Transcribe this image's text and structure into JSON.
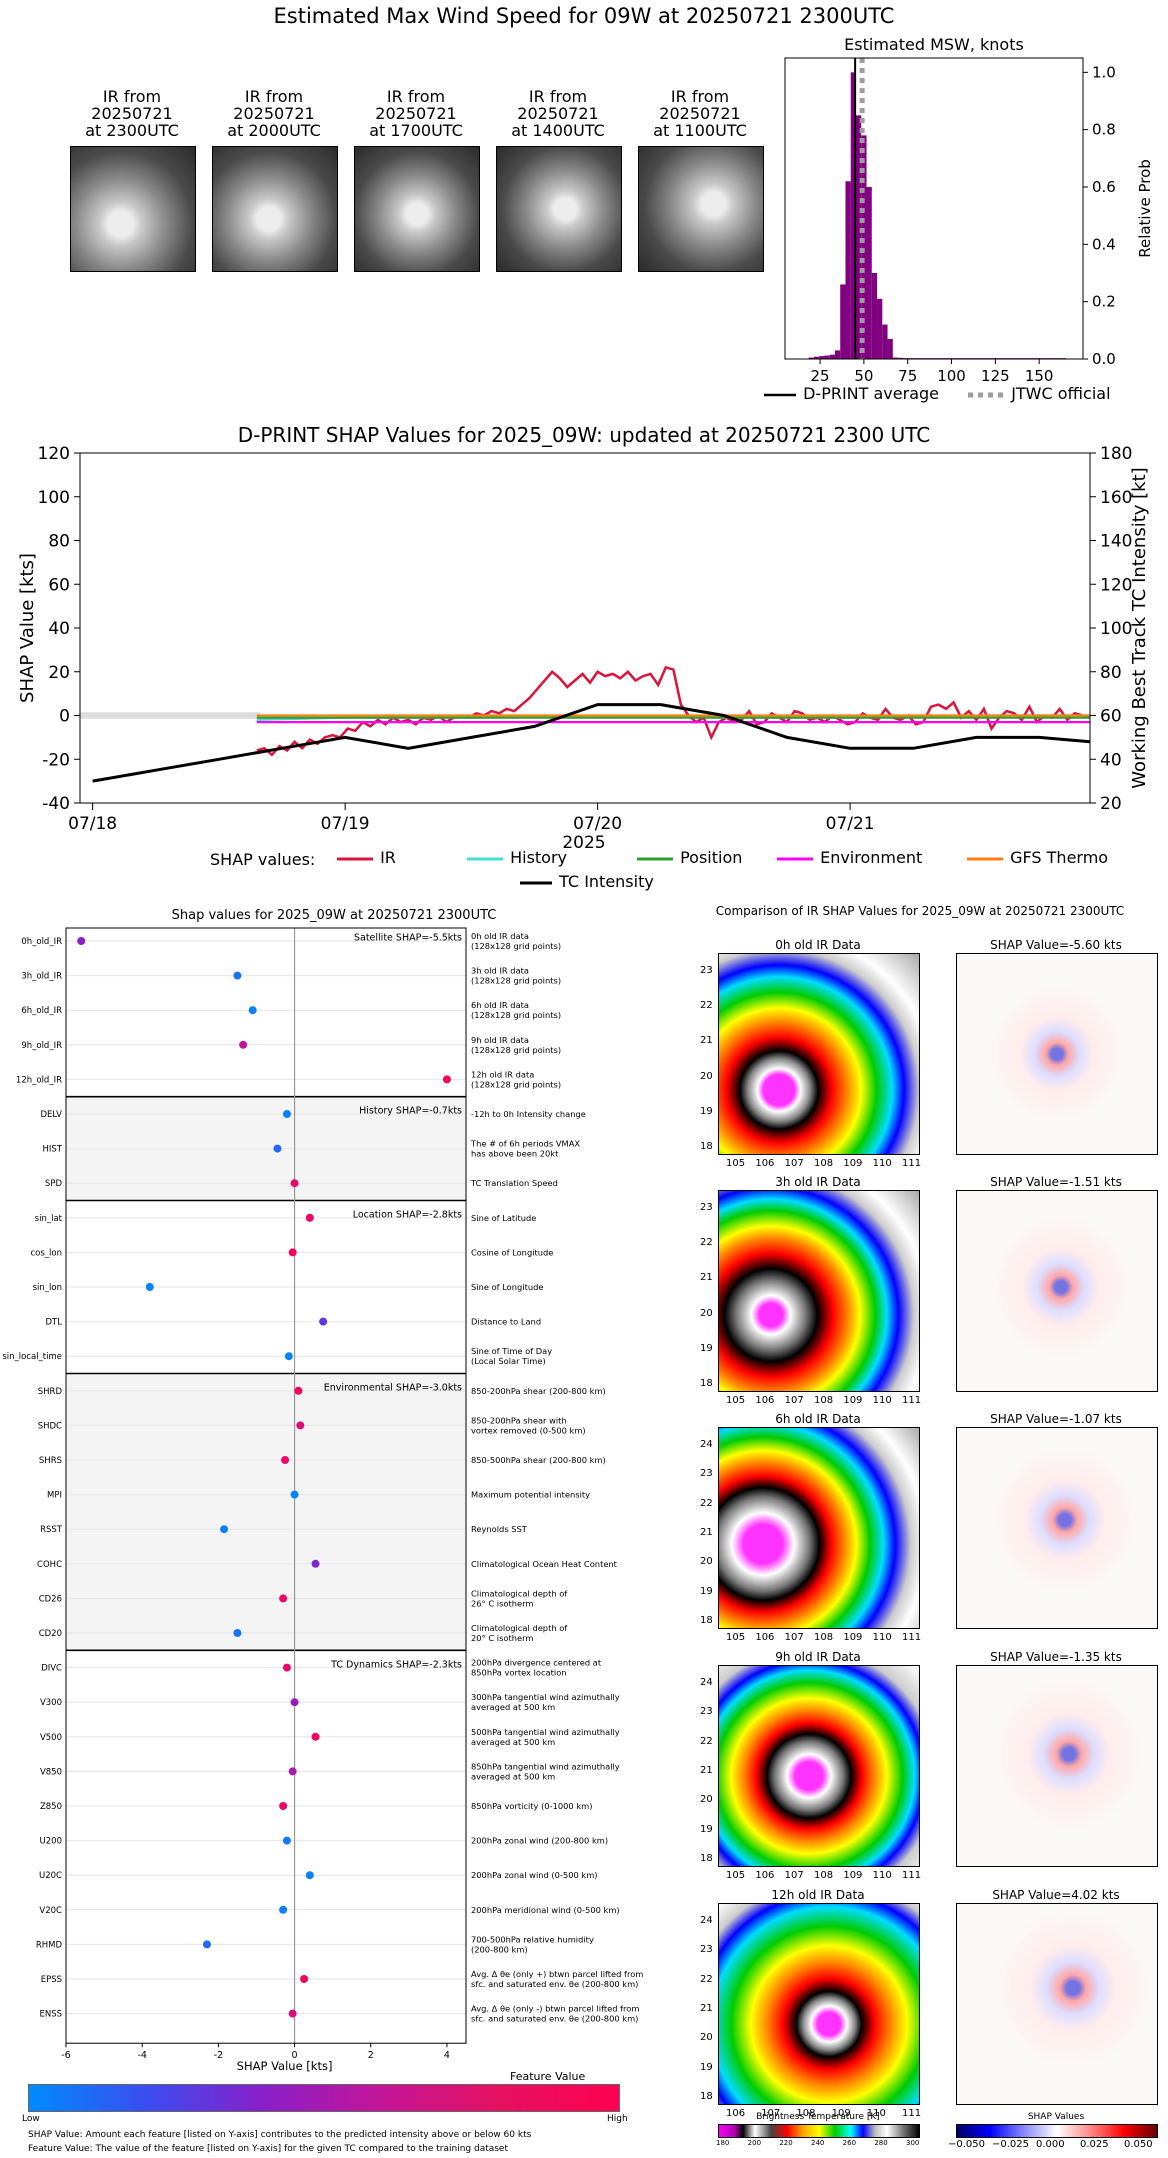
{
  "page": {
    "title": "Estimated Max Wind Speed for 09W at 20250721 2300UTC"
  },
  "ir_thumbnails": [
    {
      "label": "IR from\n20250721\nat 2300UTC"
    },
    {
      "label": "IR from\n20250721\nat 2000UTC"
    },
    {
      "label": "IR from\n20250721\nat 1700UTC"
    },
    {
      "label": "IR from\n20250721\nat 1400UTC"
    },
    {
      "label": "IR from\n20250721\nat 1100UTC"
    }
  ],
  "msw_legend": {
    "dprint": "D-PRINT average",
    "jtwc": "JTWC official"
  },
  "shap_legend": {
    "title": "SHAP values:",
    "items": [
      {
        "name": "IR",
        "color": "#dc143c"
      },
      {
        "name": "History",
        "color": "#40e0d0"
      },
      {
        "name": "Position",
        "color": "#2ca02c"
      },
      {
        "name": "Environment",
        "color": "#ff00ff"
      },
      {
        "name": "GFS Thermo",
        "color": "#ff7f0e"
      }
    ],
    "tc": "TC Intensity"
  },
  "ir_comparison": {
    "title": "Comparison of IR SHAP Values for 2025_09W at 20250721 2300UTC",
    "panels": [
      {
        "ir_title": "0h old IR Data",
        "shap_title": "SHAP Value=-5.60 kts",
        "y_ticks": [
          "23",
          "22",
          "21",
          "20",
          "19",
          "18"
        ],
        "x_ticks": [
          "105",
          "106",
          "107",
          "108",
          "109",
          "110",
          "111"
        ]
      },
      {
        "ir_title": "3h old IR Data",
        "shap_title": "SHAP Value=-1.51 kts",
        "y_ticks": [
          "23",
          "22",
          "21",
          "20",
          "19",
          "18"
        ],
        "x_ticks": [
          "105",
          "106",
          "107",
          "108",
          "109",
          "110",
          "111"
        ]
      },
      {
        "ir_title": "6h old IR Data",
        "shap_title": "SHAP Value=-1.07 kts",
        "y_ticks": [
          "24",
          "23",
          "22",
          "21",
          "20",
          "19",
          "18"
        ],
        "x_ticks": [
          "105",
          "106",
          "107",
          "108",
          "109",
          "110",
          "111"
        ]
      },
      {
        "ir_title": "9h old IR Data",
        "shap_title": "SHAP Value=-1.35 kts",
        "y_ticks": [
          "24",
          "23",
          "22",
          "21",
          "20",
          "19",
          "18"
        ],
        "x_ticks": [
          "105",
          "106",
          "107",
          "108",
          "109",
          "110",
          "111"
        ]
      },
      {
        "ir_title": "12h old IR Data",
        "shap_title": "SHAP Value=4.02 kts",
        "y_ticks": [
          "24",
          "23",
          "22",
          "21",
          "20",
          "19",
          "18"
        ],
        "x_ticks": [
          "106",
          "107",
          "108",
          "109",
          "110",
          "111"
        ]
      }
    ],
    "bt_title": "Brightness Temperature [K]",
    "bt_ticks": [
      "180",
      "200",
      "220",
      "240",
      "260",
      "280",
      "300"
    ],
    "sv_title": "SHAP Values",
    "sv_ticks": [
      "−0.050",
      "−0.025",
      "0.000",
      "0.025",
      "0.050"
    ]
  },
  "feature_colorbar": {
    "title": "Feature Value",
    "low": "Low",
    "high": "High"
  },
  "footer": {
    "line1": "SHAP Value: Amount each feature [listed on Y-axis] contributes to the predicted intensity above or below 60 kts",
    "line2": "Feature Value: The value of the feature [listed on Y-axis] for the given TC compared to the training dataset"
  },
  "chart_data": [
    {
      "type": "bar",
      "title": "Estimated MSW, knots",
      "ylabel": "Relative Prob",
      "xlim": [
        5,
        175
      ],
      "ylim": [
        0,
        1.05
      ],
      "x_ticks": [
        25,
        50,
        75,
        100,
        125,
        150
      ],
      "y_ticks": [
        0.0,
        0.2,
        0.4,
        0.6,
        0.8,
        1.0
      ],
      "bin_width": 3,
      "bins": [
        17,
        20,
        23,
        26,
        29,
        32,
        35,
        38,
        41,
        44,
        47,
        50,
        53,
        56,
        59,
        62,
        65,
        68,
        71,
        74,
        77,
        80,
        83,
        86,
        89,
        92,
        95,
        98,
        101,
        104,
        107,
        110,
        113,
        116,
        119,
        122,
        125,
        128,
        131,
        134,
        137,
        140,
        143,
        146,
        149,
        152,
        155,
        158,
        161,
        164,
        167
      ],
      "values": [
        0.0,
        0.005,
        0.008,
        0.01,
        0.012,
        0.015,
        0.03,
        0.26,
        0.62,
        1.0,
        0.85,
        0.78,
        0.6,
        0.3,
        0.21,
        0.12,
        0.07,
        0.005,
        0.004,
        0.003,
        0.003,
        0.003,
        0.003,
        0.003,
        0.003,
        0.003,
        0.003,
        0.003,
        0.003,
        0.003,
        0.003,
        0.003,
        0.003,
        0.003,
        0.003,
        0.003,
        0.003,
        0.003,
        0.003,
        0.003,
        0.003,
        0.003,
        0.003,
        0.003,
        0.003,
        0.003,
        0.003,
        0.003,
        0.003,
        0.003,
        0.0
      ],
      "dprint_average": 45,
      "jtwc_official": 49,
      "colors": {
        "bars": "#800080",
        "average": "#000000",
        "jtwc": "#9e9e9e"
      }
    },
    {
      "type": "line",
      "title": "D-PRINT SHAP Values for 2025_09W: updated at 20250721 2300 UTC",
      "xlabel": "2025",
      "ylabel": "SHAP Value [kts]",
      "y2label": "Working Best Track TC Intensity [kt]",
      "ylim": [
        -40,
        120
      ],
      "y2lim": [
        20,
        180
      ],
      "y_ticks": [
        -40,
        -20,
        0,
        20,
        40,
        60,
        80,
        100,
        120
      ],
      "y2_ticks": [
        20,
        40,
        60,
        80,
        100,
        120,
        140,
        160,
        180
      ],
      "x_ticks": [
        "07/18",
        "07/19",
        "07/20",
        "07/21"
      ],
      "series": [
        {
          "name": "IR",
          "color": "#dc143c",
          "x": [
            0.65,
            0.68,
            0.71,
            0.74,
            0.77,
            0.8,
            0.83,
            0.86,
            0.89,
            0.92,
            0.95,
            0.98,
            1.01,
            1.04,
            1.07,
            1.1,
            1.13,
            1.16,
            1.19,
            1.22,
            1.25,
            1.28,
            1.31,
            1.34,
            1.37,
            1.4,
            1.43,
            1.46,
            1.49,
            1.52,
            1.55,
            1.58,
            1.61,
            1.64,
            1.67,
            1.7,
            1.73,
            1.76,
            1.79,
            1.82,
            1.85,
            1.88,
            1.91,
            1.94,
            1.97,
            2.0,
            2.03,
            2.06,
            2.09,
            2.12,
            2.15,
            2.18,
            2.21,
            2.24,
            2.27,
            2.3,
            2.33,
            2.36,
            2.39,
            2.42,
            2.45,
            2.48,
            2.51,
            2.54,
            2.57,
            2.6,
            2.63,
            2.66,
            2.69,
            2.72,
            2.75,
            2.78,
            2.81,
            2.84,
            2.87,
            2.9,
            2.93,
            2.96,
            2.99,
            3.02,
            3.05,
            3.08,
            3.11,
            3.14,
            3.17,
            3.2,
            3.23,
            3.26,
            3.29,
            3.32,
            3.35,
            3.38,
            3.41,
            3.44,
            3.47,
            3.5,
            3.53,
            3.56,
            3.59,
            3.62,
            3.65,
            3.68,
            3.71,
            3.74,
            3.77,
            3.8,
            3.83,
            3.86,
            3.89,
            3.92,
            3.95
          ],
          "values": [
            -16,
            -15,
            -18,
            -14,
            -16,
            -12,
            -15,
            -11,
            -13,
            -10,
            -9,
            -10,
            -6,
            -7,
            -3,
            -5,
            -2,
            -4,
            -1,
            -3,
            -2,
            -4,
            -1,
            -2,
            0,
            -3,
            -1,
            0,
            -1,
            1,
            0,
            2,
            1,
            3,
            2,
            5,
            8,
            12,
            16,
            20,
            17,
            13,
            16,
            19,
            15,
            20,
            18,
            19,
            17,
            20,
            16,
            18,
            19,
            14,
            22,
            21,
            5,
            0,
            -3,
            -1,
            -10,
            -3,
            -1,
            -3,
            -2,
            2,
            -4,
            -3,
            1,
            -1,
            -3,
            2,
            1,
            -2,
            -1,
            -3,
            0,
            -2,
            -4,
            -3,
            1,
            -1,
            -2,
            3,
            -1,
            -2,
            0,
            -4,
            -3,
            4,
            5,
            3,
            6,
            -1,
            2,
            -2,
            3,
            -6,
            -1,
            2,
            1,
            -2,
            4,
            -3,
            0,
            -1,
            3,
            -2,
            1,
            0,
            -1
          ]
        },
        {
          "name": "History",
          "color": "#40e0d0",
          "x": [
            0.65,
            1.0,
            1.5,
            2.0,
            2.5,
            3.0,
            3.5,
            3.95
          ],
          "values": [
            -2,
            -1,
            -1,
            0,
            -1,
            -1,
            0,
            0
          ]
        },
        {
          "name": "Position",
          "color": "#2ca02c",
          "x": [
            0.65,
            1.0,
            1.5,
            2.0,
            2.5,
            3.0,
            3.5,
            3.95
          ],
          "values": [
            -1,
            -1,
            -1,
            -1,
            -1,
            -1,
            -1,
            -1
          ]
        },
        {
          "name": "Environment",
          "color": "#ff00ff",
          "x": [
            0.65,
            1.0,
            1.5,
            2.0,
            2.5,
            3.0,
            3.5,
            3.95
          ],
          "values": [
            -3,
            -3,
            -3,
            -3,
            -3,
            -3,
            -3,
            -3
          ]
        },
        {
          "name": "GFS Thermo",
          "color": "#ff7f0e",
          "x": [
            0.65,
            1.0,
            1.5,
            2.0,
            2.5,
            3.0,
            3.5,
            3.95
          ],
          "values": [
            0,
            0,
            0,
            0,
            0,
            0,
            0,
            0
          ]
        },
        {
          "name": "TC Intensity",
          "color": "#000000",
          "axis": "right",
          "x": [
            0.0,
            0.25,
            0.5,
            0.75,
            1.0,
            1.25,
            1.5,
            1.75,
            2.0,
            2.25,
            2.5,
            2.75,
            3.0,
            3.25,
            3.5,
            3.75,
            3.95
          ],
          "values": [
            30,
            35,
            40,
            45,
            50,
            45,
            50,
            55,
            65,
            65,
            60,
            50,
            45,
            45,
            50,
            50,
            48
          ]
        }
      ]
    },
    {
      "type": "scatter",
      "title": "Shap values for 2025_09W at 20250721 2300UTC",
      "xlabel": "SHAP Value [kts]",
      "xlim": [
        -6,
        4.5
      ],
      "x_ticks": [
        -6,
        -4,
        -2,
        0,
        2,
        4
      ],
      "groups": [
        {
          "label": "Satellite SHAP=-5.5kts",
          "shaded": false,
          "rows": [
            {
              "feature": "0h_old_IR",
              "desc": "0h old IR data\n(128x128 grid points)",
              "shap": -5.6,
              "fv": 0.55
            },
            {
              "feature": "3h_old_IR",
              "desc": "3h old IR data\n(128x128 grid points)",
              "shap": -1.5,
              "fv": 0.12
            },
            {
              "feature": "6h_old_IR",
              "desc": "6h old IR data\n(128x128 grid points)",
              "shap": -1.1,
              "fv": 0.07
            },
            {
              "feature": "9h_old_IR",
              "desc": "9h old IR data\n(128x128 grid points)",
              "shap": -1.35,
              "fv": 0.75
            },
            {
              "feature": "12h_old_IR",
              "desc": "12h old IR data\n(128x128 grid points)",
              "shap": 4.0,
              "fv": 0.97
            }
          ]
        },
        {
          "label": "History SHAP=-0.7kts",
          "shaded": true,
          "rows": [
            {
              "feature": "DELV",
              "desc": "-12h to 0h Intensity change",
              "shap": -0.2,
              "fv": 0.05
            },
            {
              "feature": "HIST",
              "desc": "The # of 6h periods VMAX\nhas above been 20kt",
              "shap": -0.45,
              "fv": 0.2
            },
            {
              "feature": "SPD",
              "desc": "TC Translation Speed",
              "shap": 0.0,
              "fv": 0.9
            }
          ]
        },
        {
          "label": "Location SHAP=-2.8kts",
          "shaded": false,
          "rows": [
            {
              "feature": "sin_lat",
              "desc": "Sine of Latitude",
              "shap": 0.4,
              "fv": 0.92
            },
            {
              "feature": "cos_lon",
              "desc": "Cosine of Longitude",
              "shap": -0.05,
              "fv": 0.96
            },
            {
              "feature": "sin_lon",
              "desc": "Sine of Longitude",
              "shap": -3.8,
              "fv": 0.04
            },
            {
              "feature": "DTL",
              "desc": "Distance to Land",
              "shap": 0.75,
              "fv": 0.45
            },
            {
              "feature": "sin_local_time",
              "desc": "Sine of Time of Day\n(Local Solar Time)",
              "shap": -0.15,
              "fv": 0.05
            }
          ]
        },
        {
          "label": "Environmental SHAP=-3.0kts",
          "shaded": true,
          "rows": [
            {
              "feature": "SHRD",
              "desc": "850-200hPa shear (200-800 km)",
              "shap": 0.1,
              "fv": 0.95
            },
            {
              "feature": "SHDC",
              "desc": "850-200hPa shear with\nvortex removed (0-500 km)",
              "shap": 0.15,
              "fv": 0.85
            },
            {
              "feature": "SHRS",
              "desc": "850-500hPa shear (200-800 km)",
              "shap": -0.25,
              "fv": 0.92
            },
            {
              "feature": "MPI",
              "desc": "Maximum potential intensity",
              "shap": 0.0,
              "fv": 0.05
            },
            {
              "feature": "RSST",
              "desc": "Reynolds SST",
              "shap": -1.85,
              "fv": 0.08
            },
            {
              "feature": "COHC",
              "desc": "Climatological Ocean Heat Content",
              "shap": 0.55,
              "fv": 0.5
            },
            {
              "feature": "CD26",
              "desc": "Climatological depth of\n26° C isotherm",
              "shap": -0.3,
              "fv": 0.92
            },
            {
              "feature": "CD20",
              "desc": "Climatological depth of\n20° C isotherm",
              "shap": -1.5,
              "fv": 0.12
            }
          ]
        },
        {
          "label": "TC Dynamics SHAP=-2.3kts",
          "shaded": false,
          "rows": [
            {
              "feature": "DIVC",
              "desc": "200hPa divergence centered at\n850hPa vortex location",
              "shap": -0.2,
              "fv": 0.9
            },
            {
              "feature": "V300",
              "desc": "300hPa tangential wind azimuthally\naveraged at 500 km",
              "shap": 0.0,
              "fv": 0.6
            },
            {
              "feature": "V500",
              "desc": "500hPa tangential wind azimuthally\naveraged at 500 km",
              "shap": 0.55,
              "fv": 0.95
            },
            {
              "feature": "V850",
              "desc": "850hPa tangential wind azimuthally\naveraged at 500 km",
              "shap": -0.05,
              "fv": 0.65
            },
            {
              "feature": "Z850",
              "desc": "850hPa vorticity (0-1000 km)",
              "shap": -0.3,
              "fv": 0.95
            },
            {
              "feature": "U200",
              "desc": "200hPa zonal wind (200-800 km)",
              "shap": -0.2,
              "fv": 0.1
            },
            {
              "feature": "U20C",
              "desc": "200hPa zonal wind (0-500 km)",
              "shap": 0.4,
              "fv": 0.05
            },
            {
              "feature": "V20C",
              "desc": "200hPa meridional wind (0-500 km)",
              "shap": -0.3,
              "fv": 0.07
            },
            {
              "feature": "RHMD",
              "desc": "700-500hPa relative humidity\n(200-800 km)",
              "shap": -2.3,
              "fv": 0.2
            },
            {
              "feature": "EPSS",
              "desc": "Avg. Δ θe (only +) btwn parcel lifted from\nsfc. and saturated env. θe (200-800 km)",
              "shap": 0.25,
              "fv": 0.97
            },
            {
              "feature": "ENSS",
              "desc": "Avg. Δ θe (only -) btwn parcel lifted from\nsfc. and saturated env. θe (200-800 km)",
              "shap": -0.05,
              "fv": 0.85
            }
          ]
        }
      ]
    }
  ]
}
